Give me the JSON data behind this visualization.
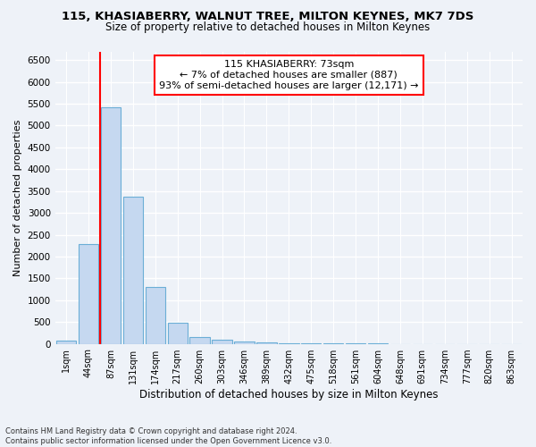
{
  "title": "115, KHASIABERRY, WALNUT TREE, MILTON KEYNES, MK7 7DS",
  "subtitle": "Size of property relative to detached houses in Milton Keynes",
  "xlabel": "Distribution of detached houses by size in Milton Keynes",
  "ylabel": "Number of detached properties",
  "footer_line1": "Contains HM Land Registry data © Crown copyright and database right 2024.",
  "footer_line2": "Contains public sector information licensed under the Open Government Licence v3.0.",
  "bar_labels": [
    "1sqm",
    "44sqm",
    "87sqm",
    "131sqm",
    "174sqm",
    "217sqm",
    "260sqm",
    "303sqm",
    "346sqm",
    "389sqm",
    "432sqm",
    "475sqm",
    "518sqm",
    "561sqm",
    "604sqm",
    "648sqm",
    "691sqm",
    "734sqm",
    "777sqm",
    "820sqm",
    "863sqm"
  ],
  "bar_values": [
    70,
    2280,
    5420,
    3380,
    1310,
    480,
    160,
    100,
    60,
    35,
    15,
    10,
    5,
    3,
    2,
    1,
    1,
    1,
    1,
    1,
    1
  ],
  "bar_color": "#c5d8f0",
  "bar_edgecolor": "#6baed6",
  "annotation_text": "115 KHASIABERRY: 73sqm\n← 7% of detached houses are smaller (887)\n93% of semi-detached houses are larger (12,171) →",
  "annotation_box_color": "white",
  "annotation_box_edgecolor": "red",
  "vline_color": "red",
  "vline_x": 1.5,
  "ylim": [
    0,
    6700
  ],
  "yticks": [
    0,
    500,
    1000,
    1500,
    2000,
    2500,
    3000,
    3500,
    4000,
    4500,
    5000,
    5500,
    6000,
    6500
  ],
  "background_color": "#eef2f8",
  "grid_color": "white",
  "title_fontsize": 9.5,
  "subtitle_fontsize": 8.5
}
